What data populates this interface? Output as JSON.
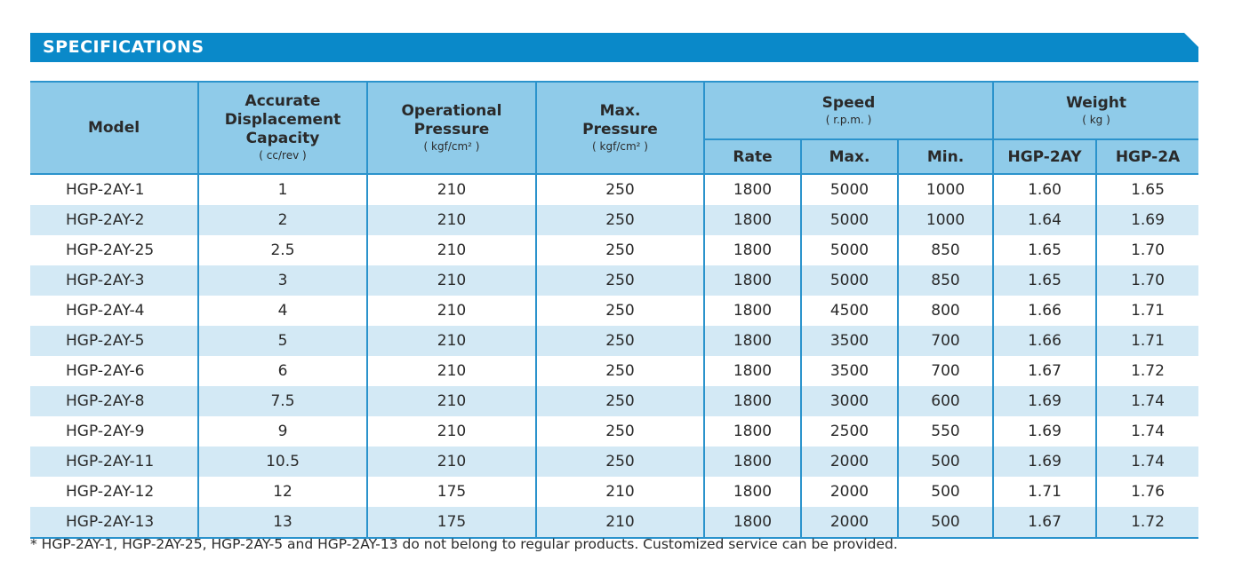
{
  "section_title": "SPECIFICATIONS",
  "colors": {
    "banner": "#0a89c9",
    "header_bg": "#8fcbe9",
    "row_alt": "#d3e9f5",
    "rule": "#2b93cc"
  },
  "headers": {
    "model": "Model",
    "capacity": {
      "line1": "Accurate",
      "line2": "Displacement",
      "line3": "Capacity",
      "unit": "( cc/rev )"
    },
    "op_pressure": {
      "line1": "Operational",
      "line2": "Pressure",
      "unit": "( kgf/cm² )"
    },
    "max_pressure": {
      "line1": "Max.",
      "line2": "Pressure",
      "unit": "( kgf/cm² )"
    },
    "speed": {
      "label": "Speed",
      "unit": "( r.p.m. )",
      "rate": "Rate",
      "max": "Max.",
      "min": "Min."
    },
    "weight": {
      "label": "Weight",
      "unit": "( kg )",
      "col1": "HGP-2AY",
      "col2": "HGP-2A"
    }
  },
  "rows": [
    [
      "HGP-2AY-1",
      "1",
      "210",
      "250",
      "1800",
      "5000",
      "1000",
      "1.60",
      "1.65"
    ],
    [
      "HGP-2AY-2",
      "2",
      "210",
      "250",
      "1800",
      "5000",
      "1000",
      "1.64",
      "1.69"
    ],
    [
      "HGP-2AY-25",
      "2.5",
      "210",
      "250",
      "1800",
      "5000",
      "850",
      "1.65",
      "1.70"
    ],
    [
      "HGP-2AY-3",
      "3",
      "210",
      "250",
      "1800",
      "5000",
      "850",
      "1.65",
      "1.70"
    ],
    [
      "HGP-2AY-4",
      "4",
      "210",
      "250",
      "1800",
      "4500",
      "800",
      "1.66",
      "1.71"
    ],
    [
      "HGP-2AY-5",
      "5",
      "210",
      "250",
      "1800",
      "3500",
      "700",
      "1.66",
      "1.71"
    ],
    [
      "HGP-2AY-6",
      "6",
      "210",
      "250",
      "1800",
      "3500",
      "700",
      "1.67",
      "1.72"
    ],
    [
      "HGP-2AY-8",
      "7.5",
      "210",
      "250",
      "1800",
      "3000",
      "600",
      "1.69",
      "1.74"
    ],
    [
      "HGP-2AY-9",
      "9",
      "210",
      "250",
      "1800",
      "2500",
      "550",
      "1.69",
      "1.74"
    ],
    [
      "HGP-2AY-11",
      "10.5",
      "210",
      "250",
      "1800",
      "2000",
      "500",
      "1.69",
      "1.74"
    ],
    [
      "HGP-2AY-12",
      "12",
      "175",
      "210",
      "1800",
      "2000",
      "500",
      "1.71",
      "1.76"
    ],
    [
      "HGP-2AY-13",
      "13",
      "175",
      "210",
      "1800",
      "2000",
      "500",
      "1.67",
      "1.72"
    ]
  ],
  "footnote": "* HGP-2AY-1, HGP-2AY-25, HGP-2AY-5 and HGP-2AY-13 do not belong to regular products. Customized service can be provided."
}
